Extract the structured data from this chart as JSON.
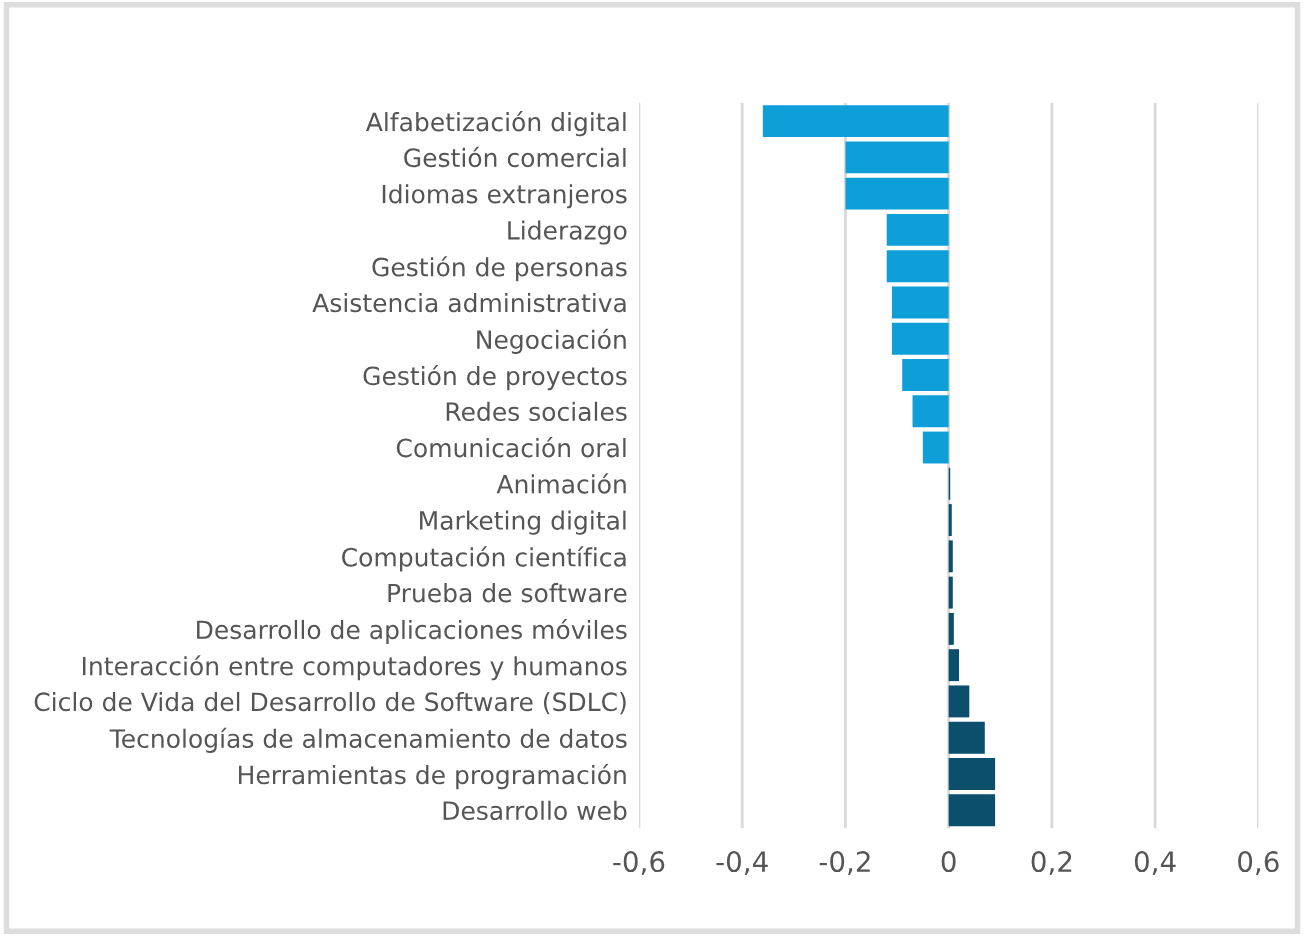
{
  "chart_data": {
    "type": "bar",
    "orientation": "horizontal",
    "categories": [
      "Alfabetización digital",
      "Gestión comercial",
      "Idiomas extranjeros",
      "Liderazgo",
      "Gestión de personas",
      "Asistencia administrativa",
      "Negociación",
      "Gestión de proyectos",
      "Redes sociales",
      "Comunicación oral",
      "Animación",
      "Marketing digital",
      "Computación científica",
      "Prueba de software",
      "Desarrollo de aplicaciones móviles",
      "Interacción entre computadores y humanos",
      "Ciclo de Vida del Desarrollo de Software (SDLC)",
      "Tecnologías de almacenamiento de datos",
      "Herramientas de programación",
      "Desarrollo web"
    ],
    "values": [
      -0.36,
      -0.2,
      -0.2,
      -0.12,
      -0.12,
      -0.11,
      -0.11,
      -0.09,
      -0.07,
      -0.05,
      0.003,
      0.006,
      0.008,
      0.008,
      0.01,
      0.02,
      0.04,
      0.07,
      0.09,
      0.09
    ],
    "colors": [
      "#0e9fd8",
      "#0e9fd8",
      "#0e9fd8",
      "#0e9fd8",
      "#0e9fd8",
      "#0e9fd8",
      "#0e9fd8",
      "#0e9fd8",
      "#0e9fd8",
      "#0e9fd8",
      "#0b4f6c",
      "#0b4f6c",
      "#0b4f6c",
      "#0b4f6c",
      "#0b4f6c",
      "#0b4f6c",
      "#0b4f6c",
      "#0b4f6c",
      "#0b4f6c",
      "#0b4f6c"
    ],
    "xlim": [
      -0.6,
      0.6
    ],
    "xticks": [
      {
        "value": -0.6,
        "label": "-0,6"
      },
      {
        "value": -0.4,
        "label": "-0,4"
      },
      {
        "value": -0.2,
        "label": "-0,2"
      },
      {
        "value": 0,
        "label": "0"
      },
      {
        "value": 0.2,
        "label": "0,2"
      },
      {
        "value": 0.4,
        "label": "0,4"
      },
      {
        "value": 0.6,
        "label": "0,6"
      }
    ],
    "grid": "x"
  }
}
